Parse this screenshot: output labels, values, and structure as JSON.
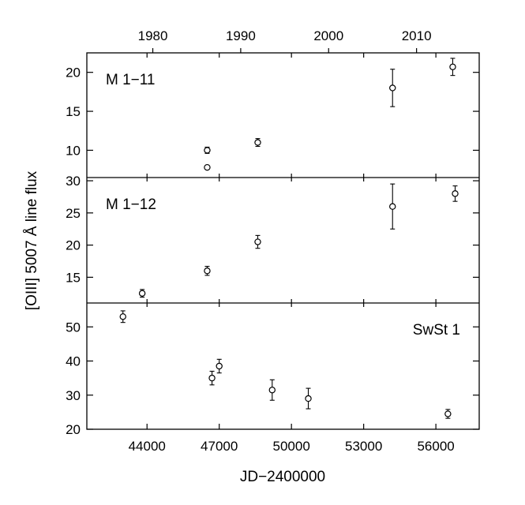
{
  "chart_data": {
    "type": "scatter",
    "xlabel": "JD−2400000",
    "ylabel": "[OIII] 5007 Å line flux",
    "xlim": [
      41500,
      57800
    ],
    "x_ticks": [
      44000,
      47000,
      50000,
      53000,
      56000
    ],
    "top_axis": {
      "ticks": [
        {
          "label": "1980",
          "jd": 44240
        },
        {
          "label": "1990",
          "jd": 47892
        },
        {
          "label": "2000",
          "jd": 51544
        },
        {
          "label": "2010",
          "jd": 55197
        }
      ]
    },
    "panels": [
      {
        "label": "M 1−11",
        "label_pos": "top-left",
        "ylim": [
          6.5,
          22.5
        ],
        "y_ticks": [
          10,
          15,
          20
        ],
        "points": [
          {
            "x": 46500,
            "y": 10.0,
            "err": 0.4
          },
          {
            "x": 46500,
            "y": 7.8,
            "err": 0.2
          },
          {
            "x": 48600,
            "y": 11.0,
            "err": 0.5
          },
          {
            "x": 54200,
            "y": 18.0,
            "err": 2.4
          },
          {
            "x": 56700,
            "y": 20.7,
            "err": 1.1
          }
        ]
      },
      {
        "label": "M 1−12",
        "label_pos": "top-left",
        "ylim": [
          11,
          30.5
        ],
        "y_ticks": [
          15,
          20,
          25,
          30
        ],
        "points": [
          {
            "x": 43800,
            "y": 12.5,
            "err": 0.6
          },
          {
            "x": 46500,
            "y": 16.0,
            "err": 0.7
          },
          {
            "x": 48600,
            "y": 20.5,
            "err": 1.0
          },
          {
            "x": 54200,
            "y": 26.0,
            "err": 3.5
          },
          {
            "x": 56800,
            "y": 28.0,
            "err": 1.2
          }
        ]
      },
      {
        "label": "SwSt 1",
        "label_pos": "top-right",
        "ylim": [
          20,
          57
        ],
        "y_ticks": [
          20,
          30,
          40,
          50
        ],
        "points": [
          {
            "x": 43000,
            "y": 53.0,
            "err": 1.7
          },
          {
            "x": 46700,
            "y": 35.0,
            "err": 2.0
          },
          {
            "x": 47000,
            "y": 38.5,
            "err": 2.0
          },
          {
            "x": 49200,
            "y": 31.5,
            "err": 3.0
          },
          {
            "x": 50700,
            "y": 29.0,
            "err": 3.0
          },
          {
            "x": 56500,
            "y": 24.5,
            "err": 1.3
          }
        ]
      }
    ]
  }
}
